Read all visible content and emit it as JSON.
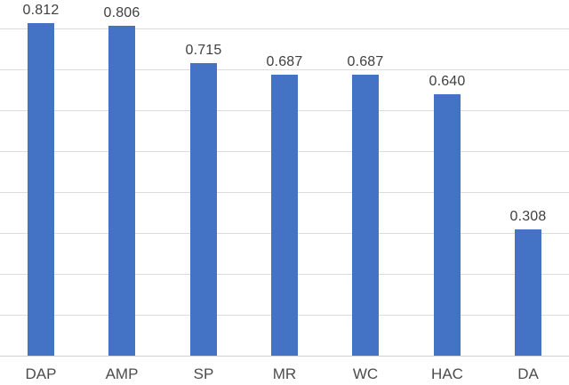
{
  "chart_data": {
    "type": "bar",
    "categories": [
      "DAP",
      "AMP",
      "SP",
      "MR",
      "WC",
      "HAC",
      "DA"
    ],
    "values": [
      0.812,
      0.806,
      0.715,
      0.687,
      0.687,
      0.64,
      0.308
    ],
    "data_labels": [
      "0.812",
      "0.806",
      "0.715",
      "0.687",
      "0.687",
      "0.640",
      "0.308"
    ],
    "title": "",
    "xlabel": "",
    "ylabel": "",
    "ylim": [
      0,
      0.87
    ],
    "grid": true,
    "gridline_values": [
      0.1,
      0.2,
      0.3,
      0.4,
      0.5,
      0.6,
      0.7,
      0.8
    ],
    "legend": "none",
    "colors": {
      "bar": "#4472c4",
      "gridline": "#dcdcdc",
      "axis_line": "#d2d2d2",
      "data_label": "#3f3f3f",
      "category_label": "#4c4c4c",
      "background": "#ffffff"
    }
  }
}
